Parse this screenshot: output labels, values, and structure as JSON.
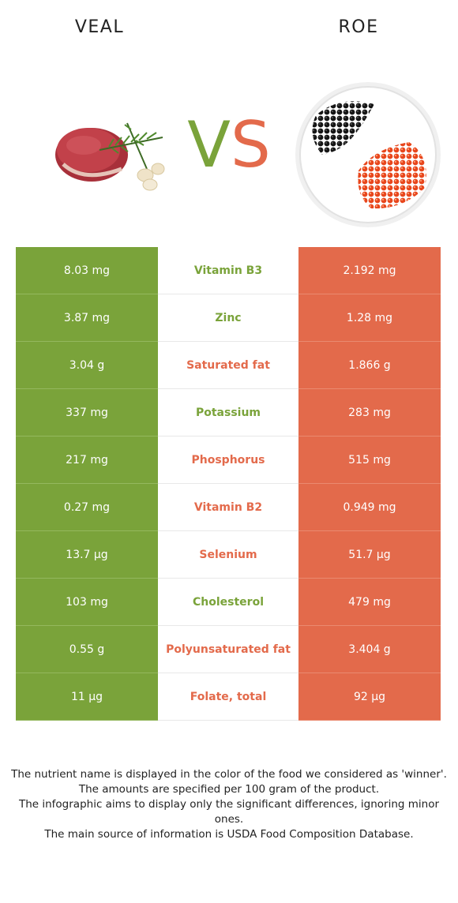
{
  "left_food": {
    "name": "VEAL",
    "color": "#7aa33a"
  },
  "right_food": {
    "name": "ROE",
    "color": "#e36a4b"
  },
  "vs": {
    "v": "V",
    "s": "S"
  },
  "rows": [
    {
      "left": "8.03 mg",
      "nutrient": "Vitamin B3",
      "right": "2.192 mg",
      "winner": "left"
    },
    {
      "left": "3.87 mg",
      "nutrient": "Zinc",
      "right": "1.28 mg",
      "winner": "left"
    },
    {
      "left": "3.04 g",
      "nutrient": "Saturated fat",
      "right": "1.866 g",
      "winner": "right"
    },
    {
      "left": "337 mg",
      "nutrient": "Potassium",
      "right": "283 mg",
      "winner": "left"
    },
    {
      "left": "217 mg",
      "nutrient": "Phosphorus",
      "right": "515 mg",
      "winner": "right"
    },
    {
      "left": "0.27 mg",
      "nutrient": "Vitamin B2",
      "right": "0.949 mg",
      "winner": "right"
    },
    {
      "left": "13.7 µg",
      "nutrient": "Selenium",
      "right": "51.7 µg",
      "winner": "right"
    },
    {
      "left": "103 mg",
      "nutrient": "Cholesterol",
      "right": "479 mg",
      "winner": "left"
    },
    {
      "left": "0.55 g",
      "nutrient": "Polyunsaturated fat",
      "right": "3.404 g",
      "winner": "right"
    },
    {
      "left": "11 µg",
      "nutrient": "Folate, total",
      "right": "92 µg",
      "winner": "right"
    }
  ],
  "footer": {
    "line1": "The nutrient name is displayed in the color of the food we considered as 'winner'.",
    "line2": "The amounts are specified per 100 gram of the product.",
    "line3": "The infographic aims to display only the significant differences, ignoring minor ones.",
    "line4": "The main source of information is USDA Food Composition Database."
  }
}
